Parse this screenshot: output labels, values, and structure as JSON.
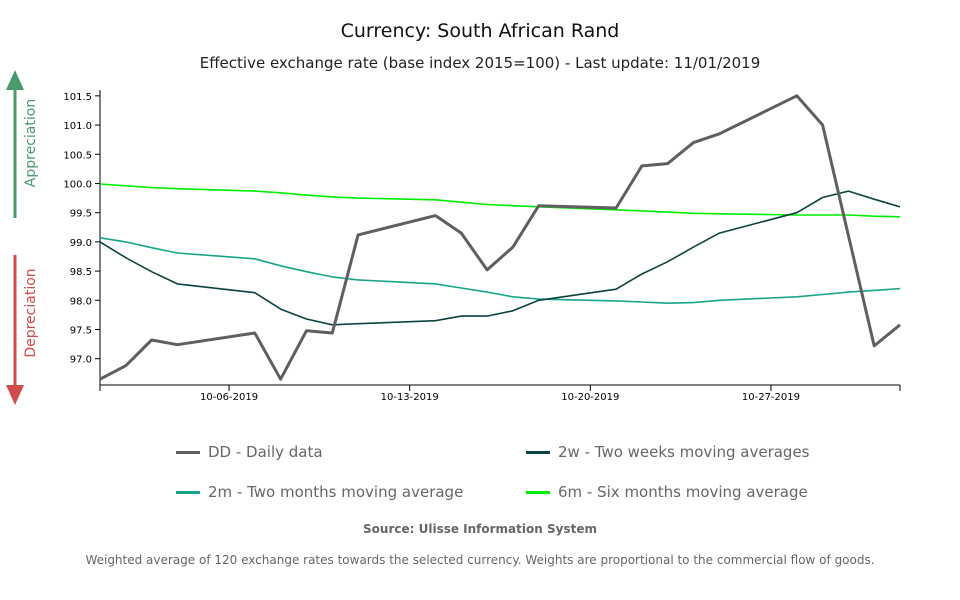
{
  "title": "Currency: South African Rand",
  "subtitle": "Effective exchange rate (base index 2015=100) - Last update: 11/01/2019",
  "side_labels": {
    "up": "Appreciation",
    "down": "Depreciation",
    "up_color": "#4a9a6e",
    "down_color": "#d24a4a"
  },
  "source": "Source: Ulisse Information System",
  "note": "Weighted average of 120 exchange rates towards the selected currency. Weights are proportional to the commercial flow of goods.",
  "chart_data": {
    "type": "line",
    "x": [
      "2019-10-01",
      "2019-10-02",
      "2019-10-03",
      "2019-10-04",
      "2019-10-07",
      "2019-10-08",
      "2019-10-09",
      "2019-10-10",
      "2019-10-11",
      "2019-10-14",
      "2019-10-15",
      "2019-10-16",
      "2019-10-17",
      "2019-10-18",
      "2019-10-21",
      "2019-10-22",
      "2019-10-23",
      "2019-10-24",
      "2019-10-25",
      "2019-10-28",
      "2019-10-29",
      "2019-10-30",
      "2019-10-31",
      "2019-11-01"
    ],
    "xlim": [
      "2019-10-01",
      "2019-11-01"
    ],
    "xticks": [
      {
        "date": "2019-10-06",
        "label": "10-06-2019"
      },
      {
        "date": "2019-10-13",
        "label": "10-13-2019"
      },
      {
        "date": "2019-10-20",
        "label": "10-20-2019"
      },
      {
        "date": "2019-10-27",
        "label": "10-27-2019"
      }
    ],
    "ylim": [
      96.55,
      101.6
    ],
    "yticks": [
      "97.0",
      "97.5",
      "98.0",
      "98.5",
      "99.0",
      "99.5",
      "100.0",
      "100.5",
      "101.0",
      "101.5"
    ],
    "grid": false,
    "legend_placement": "bottom",
    "series": [
      {
        "name": "DD - Daily data",
        "color": "#5f5f5f",
        "width": 3,
        "values": [
          96.65,
          96.88,
          97.32,
          97.24,
          97.44,
          96.65,
          97.48,
          97.44,
          99.12,
          99.45,
          99.15,
          98.52,
          98.91,
          99.62,
          99.58,
          100.3,
          100.34,
          100.7,
          100.85,
          101.5,
          101.0,
          99.11,
          97.22,
          97.58
        ]
      },
      {
        "name": "2w - Two weeks moving averages",
        "color": "#0b4441",
        "width": 1.6,
        "values": [
          99.0,
          98.73,
          98.49,
          98.28,
          98.13,
          97.85,
          97.68,
          97.58,
          97.6,
          97.65,
          97.73,
          97.73,
          97.82,
          98.0,
          98.19,
          98.45,
          98.66,
          98.91,
          99.15,
          99.5,
          99.76,
          99.87,
          99.73,
          99.6
        ]
      },
      {
        "name": "2m - Two months moving average",
        "color": "#17a58a",
        "width": 1.6,
        "values": [
          99.07,
          99.0,
          98.9,
          98.81,
          98.71,
          98.59,
          98.49,
          98.4,
          98.35,
          98.28,
          98.21,
          98.14,
          98.06,
          98.02,
          97.99,
          97.97,
          97.95,
          97.96,
          98.0,
          98.06,
          98.1,
          98.14,
          98.17,
          98.2
        ]
      },
      {
        "name": "6m - Six months moving average",
        "color": "#00ee00",
        "width": 1.6,
        "values": [
          99.99,
          99.96,
          99.93,
          99.91,
          99.87,
          99.84,
          99.8,
          99.77,
          99.75,
          99.72,
          99.68,
          99.64,
          99.62,
          99.6,
          99.55,
          99.53,
          99.51,
          99.49,
          99.48,
          99.46,
          99.46,
          99.46,
          99.44,
          99.43
        ]
      }
    ]
  }
}
